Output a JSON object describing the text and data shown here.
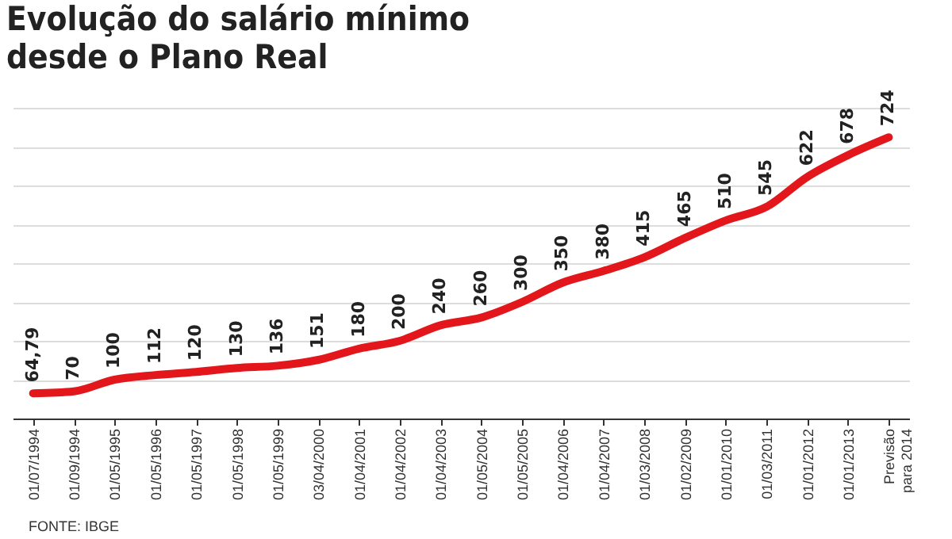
{
  "chart_data": {
    "type": "line",
    "title": "Evolução do salário mínimo desde o Plano Real",
    "categories": [
      "01/07/1994",
      "01/09/1994",
      "01/05/1995",
      "01/05/1996",
      "01/05/1997",
      "01/05/1998",
      "01/05/1999",
      "03/04/2000",
      "01/04/2001",
      "01/04/2002",
      "01/04/2003",
      "01/05/2004",
      "01/05/2005",
      "01/04/2006",
      "01/04/2007",
      "01/03/2008",
      "01/02/2009",
      "01/01/2010",
      "01/03/2011",
      "01/01/2012",
      "01/01/2013",
      "Previsão para 2014"
    ],
    "series": [
      {
        "color": "#e3161b",
        "values": [
          64.79,
          70,
          100,
          112,
          120,
          130,
          136,
          151,
          180,
          200,
          240,
          260,
          300,
          350,
          380,
          415,
          465,
          510,
          545,
          622,
          678,
          724
        ],
        "value_labels": [
          "64,79",
          "70",
          "100",
          "112",
          "120",
          "130",
          "136",
          "151",
          "180",
          "200",
          "240",
          "260",
          "300",
          "350",
          "380",
          "415",
          "465",
          "510",
          "545",
          "622",
          "678",
          "724"
        ]
      }
    ],
    "grid": "y",
    "tick_labels": "x",
    "marker": "none",
    "line_style": "solid",
    "annotations": [
      "FONTE: IBGE"
    ]
  }
}
